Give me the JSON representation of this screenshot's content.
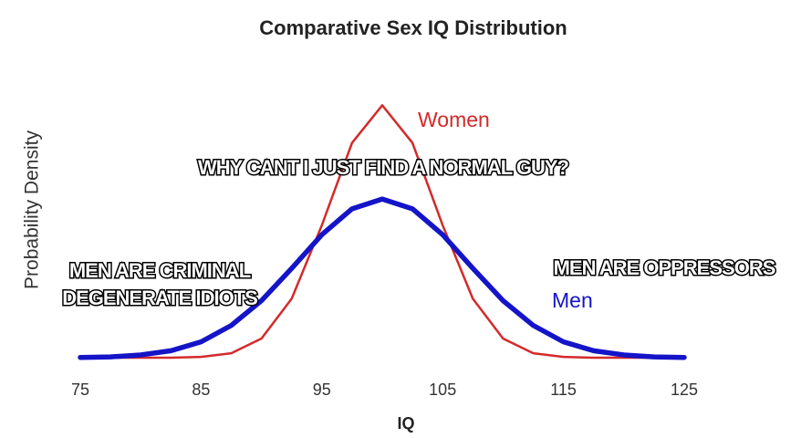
{
  "chart_data": {
    "type": "line",
    "title": "Comparative Sex IQ Distribution",
    "x_label": "IQ",
    "y_label": "Probability Density",
    "x": [
      75,
      77.5,
      80,
      82.5,
      85,
      87.5,
      90,
      92.5,
      95,
      97.5,
      100,
      102.5,
      105,
      107.5,
      110,
      112.5,
      115,
      117.5,
      120,
      122.5,
      125
    ],
    "xlim": [
      75,
      125
    ],
    "xticks": [
      75,
      85,
      95,
      105,
      115,
      125
    ],
    "ylim": [
      0,
      0.1
    ],
    "series": [
      {
        "name": "Women",
        "color": "#d42a2a",
        "values": [
          0,
          0,
          0,
          0,
          0.0003,
          0.0016,
          0.0069,
          0.0212,
          0.0476,
          0.0772,
          0.0907,
          0.0772,
          0.0476,
          0.0212,
          0.0069,
          0.0016,
          0.0003,
          0,
          0,
          0,
          0
        ]
      },
      {
        "name": "Men",
        "color": "#1414c8",
        "values": [
          0.0001,
          0.0003,
          0.001,
          0.0025,
          0.0057,
          0.0116,
          0.0205,
          0.0321,
          0.0442,
          0.0535,
          0.057,
          0.0535,
          0.0442,
          0.0321,
          0.0205,
          0.0116,
          0.0057,
          0.0025,
          0.001,
          0.0003,
          0.0001
        ]
      }
    ],
    "annotations": [
      {
        "lines": [
          "WHY CANT I JUST FIND A NORMAL GUY?"
        ]
      },
      {
        "lines": [
          "MEN ARE CRIMINAL",
          "DEGENERATE IDIOTS"
        ]
      },
      {
        "lines": [
          "MEN ARE OPPRESSORS"
        ]
      }
    ]
  }
}
